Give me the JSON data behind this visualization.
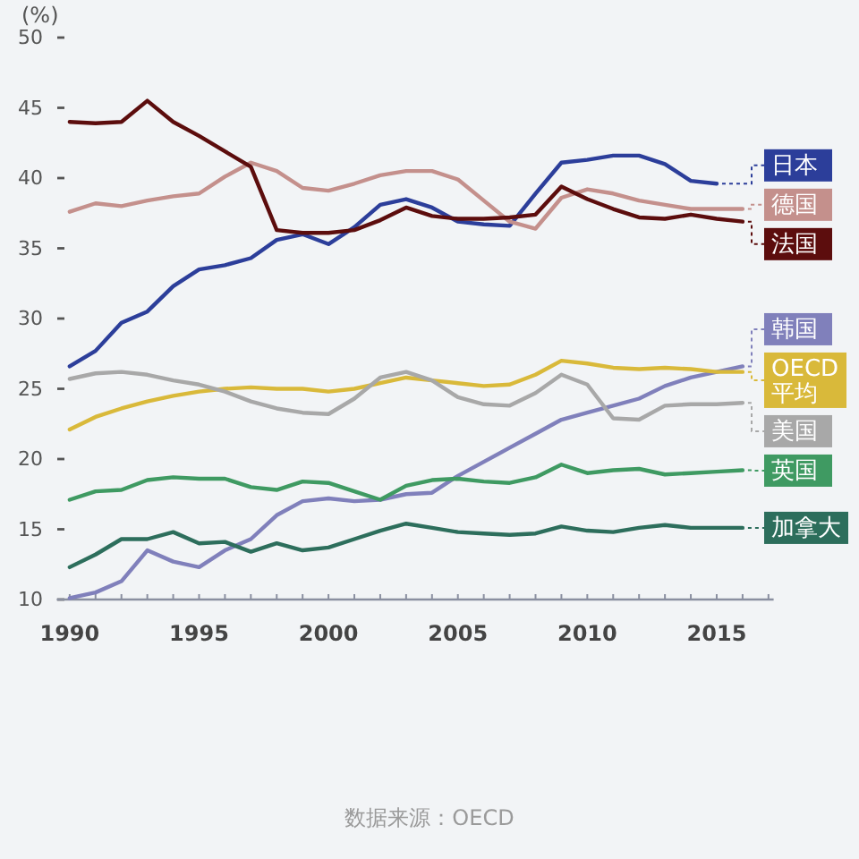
{
  "chart_data": {
    "type": "line",
    "ylabel": "(%)",
    "legend": "right",
    "x": [
      1990,
      1991,
      1992,
      1993,
      1994,
      1995,
      1996,
      1997,
      1998,
      1999,
      2000,
      2001,
      2002,
      2003,
      2004,
      2005,
      2006,
      2007,
      2008,
      2009,
      2010,
      2011,
      2012,
      2013,
      2014,
      2015,
      2016
    ],
    "xlim": [
      1989.5,
      2017.2
    ],
    "ylim": [
      10,
      50
    ],
    "xticks": [
      1990,
      {
        "value": 1991,
        "label": null
      },
      {
        "value": 1992,
        "label": null
      },
      {
        "value": 1993,
        "label": null
      },
      {
        "value": 1994,
        "label": null
      },
      1995,
      {
        "value": 1996,
        "label": null
      },
      {
        "value": 1997,
        "label": null
      },
      {
        "value": 1998,
        "label": null
      },
      {
        "value": 1999,
        "label": null
      },
      2000,
      {
        "value": 2001,
        "label": null
      },
      {
        "value": 2002,
        "label": null
      },
      {
        "value": 2003,
        "label": null
      },
      {
        "value": 2004,
        "label": null
      },
      2005,
      {
        "value": 2006,
        "label": null
      },
      {
        "value": 2007,
        "label": null
      },
      {
        "value": 2008,
        "label": null
      },
      {
        "value": 2009,
        "label": null
      },
      2010,
      {
        "value": 2011,
        "label": null
      },
      {
        "value": 2012,
        "label": null
      },
      {
        "value": 2013,
        "label": null
      },
      {
        "value": 2014,
        "label": null
      },
      2015,
      {
        "value": 2016,
        "label": null
      },
      {
        "value": 2017,
        "label": null
      }
    ],
    "yticks": [
      10,
      15,
      20,
      25,
      30,
      35,
      40,
      45,
      50
    ],
    "series": [
      {
        "name": "日本",
        "color": "#2c3e9a",
        "values": [
          26.6,
          27.7,
          29.7,
          30.5,
          32.3,
          33.5,
          33.8,
          34.3,
          35.6,
          36.0,
          35.3,
          36.5,
          38.1,
          38.5,
          37.9,
          36.9,
          36.7,
          36.6,
          38.9,
          41.1,
          41.3,
          41.6,
          41.6,
          41.0,
          39.8,
          39.6,
          null
        ]
      },
      {
        "name": "德国",
        "color": "#c4908c",
        "values": [
          37.6,
          38.2,
          38.0,
          38.4,
          38.7,
          38.9,
          40.1,
          41.1,
          40.5,
          39.3,
          39.1,
          39.6,
          40.2,
          40.5,
          40.5,
          39.9,
          38.4,
          36.9,
          36.4,
          38.6,
          39.2,
          38.9,
          38.4,
          38.1,
          37.8,
          37.8,
          37.8
        ]
      },
      {
        "name": "法国",
        "color": "#5c0d0d",
        "values": [
          44.0,
          43.9,
          44.0,
          45.5,
          44.0,
          43.0,
          41.9,
          40.8,
          36.3,
          36.1,
          36.1,
          36.3,
          37.0,
          37.9,
          37.3,
          37.1,
          37.1,
          37.2,
          37.4,
          39.4,
          38.5,
          37.8,
          37.2,
          37.1,
          37.4,
          37.1,
          36.9
        ]
      },
      {
        "name": "韩国",
        "color": "#8080bb",
        "values": [
          10.1,
          10.5,
          11.3,
          13.5,
          12.7,
          12.3,
          13.5,
          14.3,
          16.0,
          17.0,
          17.2,
          17.0,
          17.1,
          17.5,
          17.6,
          18.8,
          19.8,
          20.8,
          21.8,
          22.8,
          23.3,
          23.8,
          24.3,
          25.2,
          25.8,
          26.2,
          26.6
        ]
      },
      {
        "name": "OECD 平均",
        "color": "#d9b93a",
        "values": [
          22.1,
          23.0,
          23.6,
          24.1,
          24.5,
          24.8,
          25.0,
          25.1,
          25.0,
          25.0,
          24.8,
          25.0,
          25.4,
          25.8,
          25.6,
          25.4,
          25.2,
          25.3,
          26.0,
          27.0,
          26.8,
          26.5,
          26.4,
          26.5,
          26.4,
          26.2,
          26.2
        ]
      },
      {
        "name": "美国",
        "color": "#a8a8a8",
        "values": [
          25.7,
          26.1,
          26.2,
          26.0,
          25.6,
          25.3,
          24.8,
          24.1,
          23.6,
          23.3,
          23.2,
          24.3,
          25.8,
          26.2,
          25.6,
          24.4,
          23.9,
          23.8,
          24.7,
          26.0,
          25.3,
          22.9,
          22.8,
          23.8,
          23.9,
          23.9,
          24.0
        ]
      },
      {
        "name": "英国",
        "color": "#3f9a62",
        "values": [
          17.1,
          17.7,
          17.8,
          18.5,
          18.7,
          18.6,
          18.6,
          18.0,
          17.8,
          18.4,
          18.3,
          17.7,
          17.1,
          18.1,
          18.5,
          18.6,
          18.4,
          18.3,
          18.7,
          19.6,
          19.0,
          19.2,
          19.3,
          18.9,
          19.0,
          19.1,
          19.2
        ]
      },
      {
        "name": "加拿大",
        "color": "#2d6e5c",
        "values": [
          12.3,
          13.2,
          14.3,
          14.3,
          14.8,
          14.0,
          14.1,
          13.4,
          14.0,
          13.5,
          13.7,
          14.3,
          14.9,
          15.4,
          15.1,
          14.8,
          14.7,
          14.6,
          14.7,
          15.2,
          14.9,
          14.8,
          15.1,
          15.3,
          15.1,
          15.1,
          15.1
        ]
      }
    ],
    "annotations": [
      "数据来源：OECD"
    ]
  }
}
